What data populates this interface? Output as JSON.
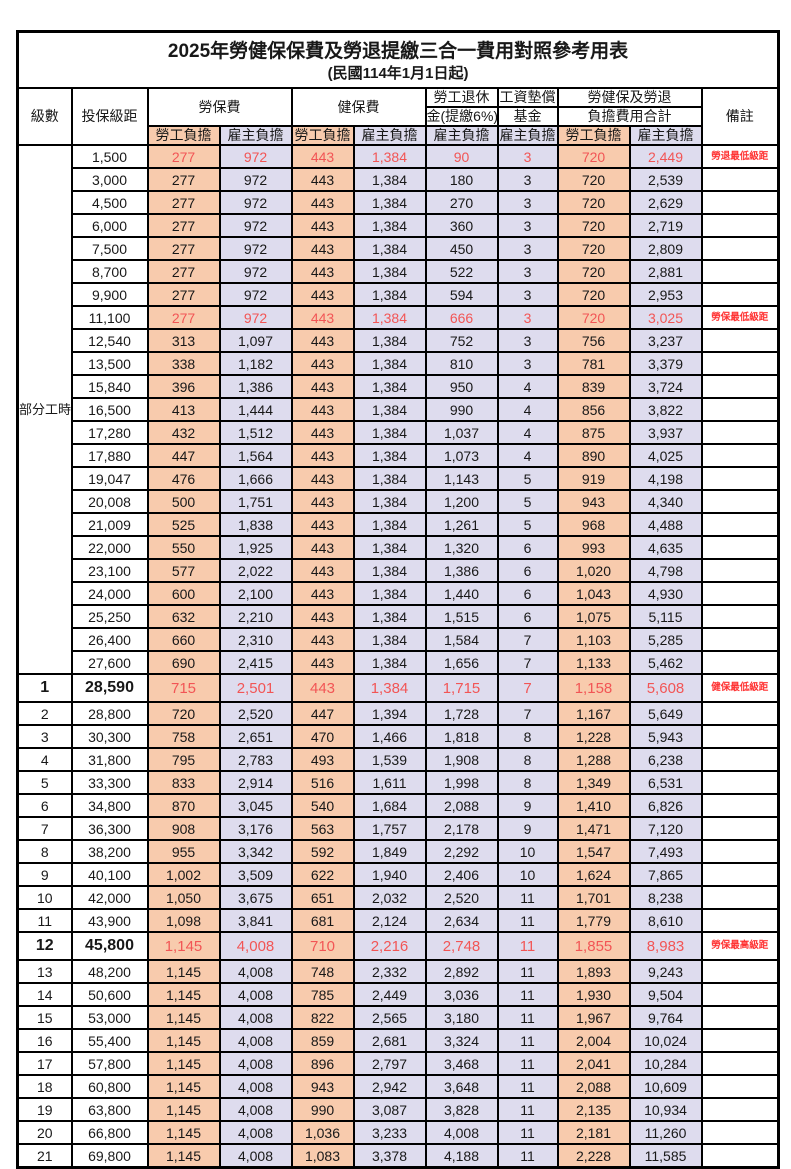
{
  "title": "2025年勞健保保費及勞退提繳三合一費用對照參考用表",
  "subtitle": "(民國114年1月1日起)",
  "colors": {
    "worker_bg": "#F8CBAD",
    "employer_bg": "#DEDCEE",
    "value_red": "#F25555",
    "remark_red": "#FF3232",
    "border": "#000000"
  },
  "header": {
    "level": "級數",
    "bracket": "投保級距",
    "labor_insurance": "勞保費",
    "health_insurance": "健保費",
    "pension_line1": "勞工退休",
    "pension_line2": "金(提繳6%)",
    "wage_fund_line1": "工資墊償",
    "wage_fund_line2": "基金",
    "total_line1": "勞健保及勞退",
    "total_line2": "負擔費用合計",
    "remark": "備註",
    "worker": "勞工負擔",
    "employer": "雇主負擔"
  },
  "group_label": "部分工時",
  "group_rows": 23,
  "rows": [
    {
      "level": "",
      "bracket": "1,500",
      "values": [
        "277",
        "972",
        "443",
        "1,384",
        "90",
        "3",
        "720",
        "2,449"
      ],
      "remark": "勞退最低級距",
      "red": true,
      "emphasis": false
    },
    {
      "level": "",
      "bracket": "3,000",
      "values": [
        "277",
        "972",
        "443",
        "1,384",
        "180",
        "3",
        "720",
        "2,539"
      ],
      "remark": "",
      "red": false,
      "emphasis": false
    },
    {
      "level": "",
      "bracket": "4,500",
      "values": [
        "277",
        "972",
        "443",
        "1,384",
        "270",
        "3",
        "720",
        "2,629"
      ],
      "remark": "",
      "red": false,
      "emphasis": false
    },
    {
      "level": "",
      "bracket": "6,000",
      "values": [
        "277",
        "972",
        "443",
        "1,384",
        "360",
        "3",
        "720",
        "2,719"
      ],
      "remark": "",
      "red": false,
      "emphasis": false
    },
    {
      "level": "",
      "bracket": "7,500",
      "values": [
        "277",
        "972",
        "443",
        "1,384",
        "450",
        "3",
        "720",
        "2,809"
      ],
      "remark": "",
      "red": false,
      "emphasis": false
    },
    {
      "level": "",
      "bracket": "8,700",
      "values": [
        "277",
        "972",
        "443",
        "1,384",
        "522",
        "3",
        "720",
        "2,881"
      ],
      "remark": "",
      "red": false,
      "emphasis": false
    },
    {
      "level": "",
      "bracket": "9,900",
      "values": [
        "277",
        "972",
        "443",
        "1,384",
        "594",
        "3",
        "720",
        "2,953"
      ],
      "remark": "",
      "red": false,
      "emphasis": false
    },
    {
      "level": "",
      "bracket": "11,100",
      "values": [
        "277",
        "972",
        "443",
        "1,384",
        "666",
        "3",
        "720",
        "3,025"
      ],
      "remark": "勞保最低級距",
      "red": true,
      "emphasis": false
    },
    {
      "level": "",
      "bracket": "12,540",
      "values": [
        "313",
        "1,097",
        "443",
        "1,384",
        "752",
        "3",
        "756",
        "3,237"
      ],
      "remark": "",
      "red": false,
      "emphasis": false
    },
    {
      "level": "",
      "bracket": "13,500",
      "values": [
        "338",
        "1,182",
        "443",
        "1,384",
        "810",
        "3",
        "781",
        "3,379"
      ],
      "remark": "",
      "red": false,
      "emphasis": false
    },
    {
      "level": "",
      "bracket": "15,840",
      "values": [
        "396",
        "1,386",
        "443",
        "1,384",
        "950",
        "4",
        "839",
        "3,724"
      ],
      "remark": "",
      "red": false,
      "emphasis": false
    },
    {
      "level": "",
      "bracket": "16,500",
      "values": [
        "413",
        "1,444",
        "443",
        "1,384",
        "990",
        "4",
        "856",
        "3,822"
      ],
      "remark": "",
      "red": false,
      "emphasis": false
    },
    {
      "level": "",
      "bracket": "17,280",
      "values": [
        "432",
        "1,512",
        "443",
        "1,384",
        "1,037",
        "4",
        "875",
        "3,937"
      ],
      "remark": "",
      "red": false,
      "emphasis": false
    },
    {
      "level": "",
      "bracket": "17,880",
      "values": [
        "447",
        "1,564",
        "443",
        "1,384",
        "1,073",
        "4",
        "890",
        "4,025"
      ],
      "remark": "",
      "red": false,
      "emphasis": false
    },
    {
      "level": "",
      "bracket": "19,047",
      "values": [
        "476",
        "1,666",
        "443",
        "1,384",
        "1,143",
        "5",
        "919",
        "4,198"
      ],
      "remark": "",
      "red": false,
      "emphasis": false
    },
    {
      "level": "",
      "bracket": "20,008",
      "values": [
        "500",
        "1,751",
        "443",
        "1,384",
        "1,200",
        "5",
        "943",
        "4,340"
      ],
      "remark": "",
      "red": false,
      "emphasis": false
    },
    {
      "level": "",
      "bracket": "21,009",
      "values": [
        "525",
        "1,838",
        "443",
        "1,384",
        "1,261",
        "5",
        "968",
        "4,488"
      ],
      "remark": "",
      "red": false,
      "emphasis": false
    },
    {
      "level": "",
      "bracket": "22,000",
      "values": [
        "550",
        "1,925",
        "443",
        "1,384",
        "1,320",
        "6",
        "993",
        "4,635"
      ],
      "remark": "",
      "red": false,
      "emphasis": false
    },
    {
      "level": "",
      "bracket": "23,100",
      "values": [
        "577",
        "2,022",
        "443",
        "1,384",
        "1,386",
        "6",
        "1,020",
        "4,798"
      ],
      "remark": "",
      "red": false,
      "emphasis": false
    },
    {
      "level": "",
      "bracket": "24,000",
      "values": [
        "600",
        "2,100",
        "443",
        "1,384",
        "1,440",
        "6",
        "1,043",
        "4,930"
      ],
      "remark": "",
      "red": false,
      "emphasis": false
    },
    {
      "level": "",
      "bracket": "25,250",
      "values": [
        "632",
        "2,210",
        "443",
        "1,384",
        "1,515",
        "6",
        "1,075",
        "5,115"
      ],
      "remark": "",
      "red": false,
      "emphasis": false
    },
    {
      "level": "",
      "bracket": "26,400",
      "values": [
        "660",
        "2,310",
        "443",
        "1,384",
        "1,584",
        "7",
        "1,103",
        "5,285"
      ],
      "remark": "",
      "red": false,
      "emphasis": false
    },
    {
      "level": "",
      "bracket": "27,600",
      "values": [
        "690",
        "2,415",
        "443",
        "1,384",
        "1,656",
        "7",
        "1,133",
        "5,462"
      ],
      "remark": "",
      "red": false,
      "emphasis": false
    },
    {
      "level": "1",
      "bracket": "28,590",
      "values": [
        "715",
        "2,501",
        "443",
        "1,384",
        "1,715",
        "7",
        "1,158",
        "5,608"
      ],
      "remark": "健保最低級距",
      "red": true,
      "emphasis": true
    },
    {
      "level": "2",
      "bracket": "28,800",
      "values": [
        "720",
        "2,520",
        "447",
        "1,394",
        "1,728",
        "7",
        "1,167",
        "5,649"
      ],
      "remark": "",
      "red": false,
      "emphasis": false
    },
    {
      "level": "3",
      "bracket": "30,300",
      "values": [
        "758",
        "2,651",
        "470",
        "1,466",
        "1,818",
        "8",
        "1,228",
        "5,943"
      ],
      "remark": "",
      "red": false,
      "emphasis": false
    },
    {
      "level": "4",
      "bracket": "31,800",
      "values": [
        "795",
        "2,783",
        "493",
        "1,539",
        "1,908",
        "8",
        "1,288",
        "6,238"
      ],
      "remark": "",
      "red": false,
      "emphasis": false
    },
    {
      "level": "5",
      "bracket": "33,300",
      "values": [
        "833",
        "2,914",
        "516",
        "1,611",
        "1,998",
        "8",
        "1,349",
        "6,531"
      ],
      "remark": "",
      "red": false,
      "emphasis": false
    },
    {
      "level": "6",
      "bracket": "34,800",
      "values": [
        "870",
        "3,045",
        "540",
        "1,684",
        "2,088",
        "9",
        "1,410",
        "6,826"
      ],
      "remark": "",
      "red": false,
      "emphasis": false
    },
    {
      "level": "7",
      "bracket": "36,300",
      "values": [
        "908",
        "3,176",
        "563",
        "1,757",
        "2,178",
        "9",
        "1,471",
        "7,120"
      ],
      "remark": "",
      "red": false,
      "emphasis": false
    },
    {
      "level": "8",
      "bracket": "38,200",
      "values": [
        "955",
        "3,342",
        "592",
        "1,849",
        "2,292",
        "10",
        "1,547",
        "7,493"
      ],
      "remark": "",
      "red": false,
      "emphasis": false
    },
    {
      "level": "9",
      "bracket": "40,100",
      "values": [
        "1,002",
        "3,509",
        "622",
        "1,940",
        "2,406",
        "10",
        "1,624",
        "7,865"
      ],
      "remark": "",
      "red": false,
      "emphasis": false
    },
    {
      "level": "10",
      "bracket": "42,000",
      "values": [
        "1,050",
        "3,675",
        "651",
        "2,032",
        "2,520",
        "11",
        "1,701",
        "8,238"
      ],
      "remark": "",
      "red": false,
      "emphasis": false
    },
    {
      "level": "11",
      "bracket": "43,900",
      "values": [
        "1,098",
        "3,841",
        "681",
        "2,124",
        "2,634",
        "11",
        "1,779",
        "8,610"
      ],
      "remark": "",
      "red": false,
      "emphasis": false
    },
    {
      "level": "12",
      "bracket": "45,800",
      "values": [
        "1,145",
        "4,008",
        "710",
        "2,216",
        "2,748",
        "11",
        "1,855",
        "8,983"
      ],
      "remark": "勞保最高級距",
      "red": true,
      "emphasis": true
    },
    {
      "level": "13",
      "bracket": "48,200",
      "values": [
        "1,145",
        "4,008",
        "748",
        "2,332",
        "2,892",
        "11",
        "1,893",
        "9,243"
      ],
      "remark": "",
      "red": false,
      "emphasis": false
    },
    {
      "level": "14",
      "bracket": "50,600",
      "values": [
        "1,145",
        "4,008",
        "785",
        "2,449",
        "3,036",
        "11",
        "1,930",
        "9,504"
      ],
      "remark": "",
      "red": false,
      "emphasis": false
    },
    {
      "level": "15",
      "bracket": "53,000",
      "values": [
        "1,145",
        "4,008",
        "822",
        "2,565",
        "3,180",
        "11",
        "1,967",
        "9,764"
      ],
      "remark": "",
      "red": false,
      "emphasis": false
    },
    {
      "level": "16",
      "bracket": "55,400",
      "values": [
        "1,145",
        "4,008",
        "859",
        "2,681",
        "3,324",
        "11",
        "2,004",
        "10,024"
      ],
      "remark": "",
      "red": false,
      "emphasis": false
    },
    {
      "level": "17",
      "bracket": "57,800",
      "values": [
        "1,145",
        "4,008",
        "896",
        "2,797",
        "3,468",
        "11",
        "2,041",
        "10,284"
      ],
      "remark": "",
      "red": false,
      "emphasis": false
    },
    {
      "level": "18",
      "bracket": "60,800",
      "values": [
        "1,145",
        "4,008",
        "943",
        "2,942",
        "3,648",
        "11",
        "2,088",
        "10,609"
      ],
      "remark": "",
      "red": false,
      "emphasis": false
    },
    {
      "level": "19",
      "bracket": "63,800",
      "values": [
        "1,145",
        "4,008",
        "990",
        "3,087",
        "3,828",
        "11",
        "2,135",
        "10,934"
      ],
      "remark": "",
      "red": false,
      "emphasis": false
    },
    {
      "level": "20",
      "bracket": "66,800",
      "values": [
        "1,145",
        "4,008",
        "1,036",
        "3,233",
        "4,008",
        "11",
        "2,181",
        "11,260"
      ],
      "remark": "",
      "red": false,
      "emphasis": false
    },
    {
      "level": "21",
      "bracket": "69,800",
      "values": [
        "1,145",
        "4,008",
        "1,083",
        "3,378",
        "4,188",
        "11",
        "2,228",
        "11,585"
      ],
      "remark": "",
      "red": false,
      "emphasis": false
    }
  ]
}
